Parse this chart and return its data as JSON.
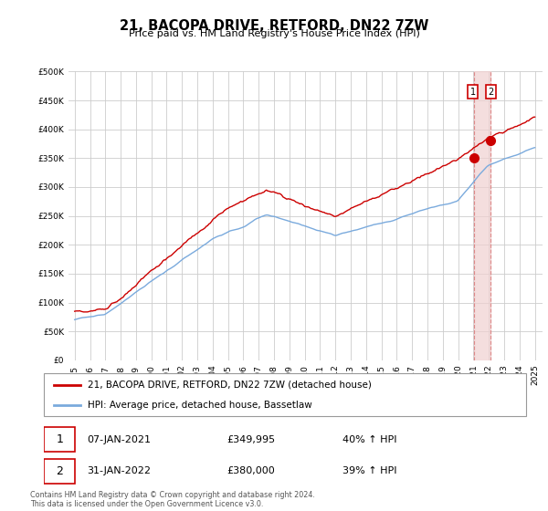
{
  "title": "21, BACOPA DRIVE, RETFORD, DN22 7ZW",
  "subtitle": "Price paid vs. HM Land Registry's House Price Index (HPI)",
  "hpi_label": "HPI: Average price, detached house, Bassetlaw",
  "price_label": "21, BACOPA DRIVE, RETFORD, DN22 7ZW (detached house)",
  "footnote": "Contains HM Land Registry data © Crown copyright and database right 2024.\nThis data is licensed under the Open Government Licence v3.0.",
  "sale1_date": "07-JAN-2021",
  "sale1_price": "£349,995",
  "sale1_pct": "40% ↑ HPI",
  "sale2_date": "31-JAN-2022",
  "sale2_price": "£380,000",
  "sale2_pct": "39% ↑ HPI",
  "sale1_year": 2021.018,
  "sale2_year": 2022.082,
  "sale1_price_val": 349995,
  "sale2_price_val": 380000,
  "hpi_color": "#7aaadd",
  "price_color": "#cc0000",
  "sale_marker_color": "#cc0000",
  "vline_color": "#dd8888",
  "vfill_color": "#f0d0d0",
  "ylim": [
    0,
    500000
  ],
  "yticks": [
    0,
    50000,
    100000,
    150000,
    200000,
    250000,
    300000,
    350000,
    400000,
    450000,
    500000
  ],
  "background_color": "#ffffff",
  "grid_color": "#cccccc"
}
